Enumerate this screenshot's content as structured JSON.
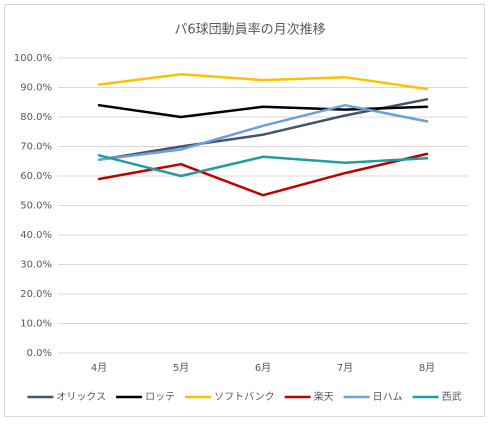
{
  "chart_data": {
    "type": "line",
    "title": "パ6球団動員率の月次推移",
    "categories": [
      "4月",
      "5月",
      "6月",
      "7月",
      "8月"
    ],
    "series": [
      {
        "name": "オリックス",
        "color": "#44546a",
        "values": [
          65.5,
          70,
          74,
          80.5,
          86
        ]
      },
      {
        "name": "ロッテ",
        "color": "#000000",
        "values": [
          84,
          80,
          83.5,
          82.5,
          83.5
        ]
      },
      {
        "name": "ソフトバンク",
        "color": "#ffc000",
        "values": [
          91,
          94.5,
          92.5,
          93.5,
          89.5
        ]
      },
      {
        "name": "楽天",
        "color": "#c00000",
        "values": [
          59,
          64,
          53.5,
          61,
          67.5
        ]
      },
      {
        "name": "日ハム",
        "color": "#6f9fd8",
        "values": [
          65.5,
          69,
          77,
          84,
          78.5
        ]
      },
      {
        "name": "西武",
        "color": "#1f9e9e",
        "values": [
          67,
          60,
          66.5,
          64.5,
          66
        ]
      }
    ],
    "ylim": [
      0,
      100
    ],
    "yticks": [
      {
        "value": 0,
        "label": "0.0%"
      },
      {
        "value": 10,
        "label": "10.0%"
      },
      {
        "value": 20,
        "label": "20.0%"
      },
      {
        "value": 30,
        "label": "30.0%"
      },
      {
        "value": 40,
        "label": "40.0%"
      },
      {
        "value": 50,
        "label": "50.0%"
      },
      {
        "value": 60,
        "label": "60.0%"
      },
      {
        "value": 70,
        "label": "70.0%"
      },
      {
        "value": 80,
        "label": "80.0%"
      },
      {
        "value": 90,
        "label": "90.0%"
      },
      {
        "value": 100,
        "label": "100.0%"
      }
    ],
    "grid": true,
    "legend": "bottom"
  }
}
